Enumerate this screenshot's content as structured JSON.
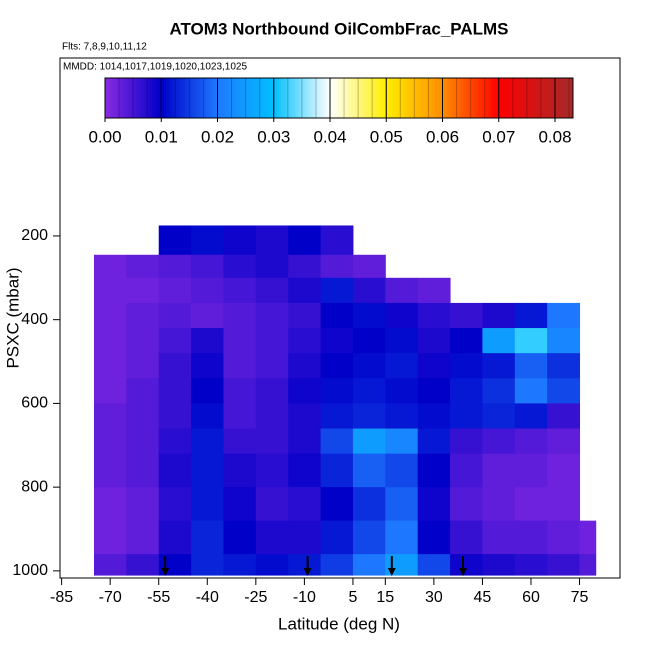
{
  "chart_data": {
    "type": "heatmap",
    "title": "ATOM3 Northbound OilCombFrac_PALMS",
    "subtitle": "Flts: 7,8,9,10,11,12",
    "annotation": "MMDD: 1014,1017,1019,1020,1023,1025",
    "x_label": "Latitude (deg N)",
    "y_label": "PSXC (mbar)",
    "xlim": [
      -85.5,
      87.5
    ],
    "ylim": [
      1017,
      -225
    ],
    "xticks": [
      -85,
      -70,
      -55,
      -40,
      -25,
      -10,
      5,
      15,
      30,
      45,
      60,
      75
    ],
    "yticks": [
      200,
      400,
      600,
      800,
      1000
    ],
    "lat_edges": [
      -75,
      -65,
      -55,
      -45,
      -35,
      -25,
      -15,
      -5,
      5,
      15,
      25,
      35,
      45,
      55,
      65,
      75,
      80
    ],
    "pressure_edges": [
      175,
      245,
      300,
      360,
      420,
      480,
      540,
      600,
      660,
      720,
      800,
      880,
      960,
      1010
    ],
    "values": [
      [
        null,
        null,
        0.01,
        0.011,
        0.009,
        0.008,
        0.01,
        0.007,
        null,
        null,
        null,
        null,
        null,
        null,
        null,
        null
      ],
      [
        0.002,
        0.003,
        0.004,
        0.005,
        0.007,
        0.008,
        0.006,
        0.004,
        0.003,
        null,
        null,
        null,
        null,
        null,
        null,
        null
      ],
      [
        0.002,
        0.002,
        0.003,
        0.004,
        0.005,
        0.006,
        0.008,
        0.012,
        0.007,
        0.004,
        0.003,
        null,
        null,
        null,
        null,
        null
      ],
      [
        0.002,
        0.003,
        0.004,
        0.003,
        0.004,
        0.005,
        0.006,
        0.01,
        0.011,
        0.009,
        0.007,
        0.006,
        0.008,
        0.012,
        0.02,
        null
      ],
      [
        0.002,
        0.003,
        0.005,
        0.008,
        0.004,
        0.005,
        0.007,
        0.009,
        0.01,
        0.011,
        0.008,
        0.01,
        0.025,
        0.032,
        0.022,
        null
      ],
      [
        0.002,
        0.003,
        0.006,
        0.009,
        0.004,
        0.005,
        0.008,
        0.01,
        0.011,
        0.012,
        0.009,
        0.011,
        0.012,
        0.018,
        0.014,
        null
      ],
      [
        0.002,
        0.004,
        0.006,
        0.01,
        0.005,
        0.006,
        0.009,
        0.011,
        0.012,
        0.011,
        0.01,
        0.012,
        0.014,
        0.02,
        0.016,
        null
      ],
      [
        0.003,
        0.004,
        0.006,
        0.011,
        0.005,
        0.006,
        0.008,
        0.012,
        0.013,
        0.012,
        0.011,
        0.012,
        0.013,
        0.012,
        0.006,
        null
      ],
      [
        0.003,
        0.004,
        0.007,
        0.012,
        0.006,
        0.006,
        0.008,
        0.016,
        0.025,
        0.022,
        0.012,
        0.006,
        0.005,
        0.004,
        0.003,
        null
      ],
      [
        0.003,
        0.004,
        0.008,
        0.012,
        0.008,
        0.007,
        0.009,
        0.013,
        0.018,
        0.016,
        0.01,
        0.005,
        0.003,
        0.003,
        0.002,
        null
      ],
      [
        0.002,
        0.003,
        0.007,
        0.012,
        0.009,
        0.006,
        0.007,
        0.01,
        0.014,
        0.018,
        0.009,
        0.004,
        0.003,
        0.002,
        0.002,
        null
      ],
      [
        0.002,
        0.003,
        0.008,
        0.013,
        0.01,
        0.008,
        0.008,
        0.012,
        0.016,
        0.02,
        0.01,
        0.006,
        0.004,
        0.004,
        0.003,
        0.002
      ],
      [
        0.004,
        0.006,
        0.01,
        0.013,
        0.012,
        0.011,
        0.012,
        0.015,
        0.02,
        0.025,
        0.016,
        0.009,
        0.008,
        0.007,
        0.006,
        0.004
      ]
    ],
    "colorbar_lim": [
      0,
      0.0832
    ],
    "colorbar_ticks": [
      {
        "value": 0,
        "label": "0.00"
      },
      {
        "value": 0.01,
        "label": "0.01"
      },
      {
        "value": 0.02,
        "label": "0.02"
      },
      {
        "value": 0.03,
        "label": "0.03"
      },
      {
        "value": 0.04,
        "label": "0.04"
      },
      {
        "value": 0.05,
        "label": "0.05"
      },
      {
        "value": 0.06,
        "label": "0.06"
      },
      {
        "value": 0.07,
        "label": "0.07"
      },
      {
        "value": 0.08,
        "label": "0.08"
      }
    ],
    "colorscale": [
      [
        0,
        "#8a2be2"
      ],
      [
        0.01,
        "#0000c8"
      ],
      [
        0.02,
        "#1e78ff"
      ],
      [
        0.03,
        "#00c0ff"
      ],
      [
        0.04,
        "#ffffff"
      ],
      [
        0.05,
        "#ffee00"
      ],
      [
        0.06,
        "#ff8c00"
      ],
      [
        0.07,
        "#ff0000"
      ],
      [
        0.0832,
        "#a52a2a"
      ]
    ],
    "flight_latitudes": [
      -53,
      -9,
      17,
      39
    ]
  }
}
